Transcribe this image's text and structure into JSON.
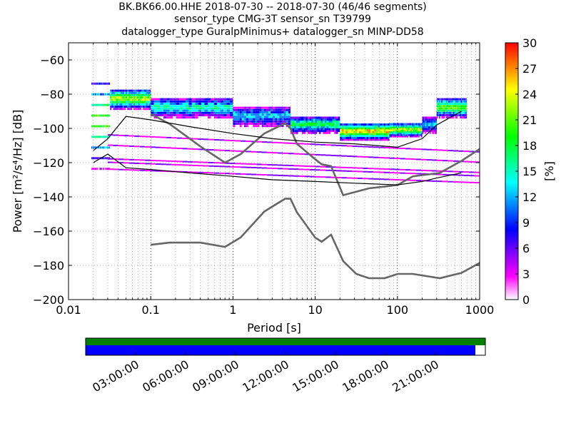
{
  "chart_data": {
    "type": "heatmap",
    "title_lines": [
      "BK.BK66.00.HHE   2018-07-30 -- 2018-07-30  (46/46 segments)",
      "sensor_type CMG-3T sensor_sn T39799",
      "datalogger_type GuralpMinimus+ datalogger_sn MINP-DD58"
    ],
    "xlabel": "Period [s]",
    "ylabel": "Power [m²/s⁴/Hz] [dB]",
    "xscale": "log",
    "xlim": [
      0.01,
      1000
    ],
    "ylim": [
      -200,
      -50
    ],
    "xticks": [
      0.01,
      0.1,
      1,
      10,
      100,
      1000
    ],
    "xtick_labels": [
      "0.01",
      "0.1",
      "1",
      "10",
      "100",
      "1000"
    ],
    "yticks": [
      -200,
      -180,
      -160,
      -140,
      -120,
      -100,
      -80,
      -60
    ],
    "ytick_labels": [
      "−200",
      "−180",
      "−160",
      "−140",
      "−120",
      "−100",
      "−80",
      "−60"
    ],
    "colorbar": {
      "label": "[%]",
      "range": [
        0,
        30
      ],
      "ticks": [
        0,
        3,
        6,
        9,
        12,
        15,
        18,
        21,
        24,
        27,
        30
      ],
      "tick_labels": [
        "0",
        "3",
        "6",
        "9",
        "12",
        "15",
        "18",
        "21",
        "24",
        "27",
        "30"
      ],
      "colormap": [
        "#ffffff",
        "#ff00ff",
        "#8000ff",
        "#0000ff",
        "#0080ff",
        "#00ffff",
        "#00ff80",
        "#00ff00",
        "#80ff00",
        "#ffff00",
        "#ff8000",
        "#ff0000"
      ]
    },
    "series": [
      {
        "role": "NHNM",
        "color": "#666666",
        "x": [
          0.1,
          0.17,
          0.4,
          0.8,
          1.24,
          2.4,
          4.3,
          5.0,
          6.0,
          10.0,
          12.0,
          15.6,
          21.9,
          31.6,
          45.0,
          70.0,
          101.0,
          154.0,
          328.0,
          600.0,
          1000.0
        ],
        "y": [
          -91.5,
          -97.4,
          -110.5,
          -120.0,
          -115.0,
          -103.0,
          -97.0,
          -100.0,
          -109.0,
          -118.0,
          -121.0,
          -122.0,
          -139.0,
          -137.0,
          -135.0,
          -134.0,
          -133.0,
          -128.0,
          -126.0,
          -119.0,
          -112.0
        ]
      },
      {
        "role": "NLNM",
        "color": "#666666",
        "x": [
          0.1,
          0.17,
          0.4,
          0.8,
          1.24,
          2.4,
          4.3,
          5.0,
          6.0,
          10.0,
          12.0,
          15.6,
          21.9,
          31.6,
          45.0,
          70.0,
          101.0,
          154.0,
          328.0,
          600.0,
          1000.0
        ],
        "y": [
          -168.0,
          -166.7,
          -166.7,
          -169.2,
          -163.7,
          -148.6,
          -141.1,
          -141.1,
          -149.0,
          -163.8,
          -166.2,
          -162.1,
          -177.5,
          -185.0,
          -187.5,
          -187.5,
          -185.0,
          -185.0,
          -187.5,
          -184.4,
          -178.6
        ]
      },
      {
        "role": "mode",
        "color": "#000000",
        "x": [
          0.02,
          0.03,
          0.05,
          0.1,
          0.3,
          1.0,
          3.0,
          10.0,
          30.0,
          100.0,
          200.0,
          300.0,
          600.0
        ],
        "y": [
          -113.0,
          -106.0,
          -93.0,
          -95.0,
          -99.0,
          -103.0,
          -106.0,
          -108.0,
          -109.0,
          -111.0,
          -106.0,
          -98.0,
          -90.0
        ]
      },
      {
        "role": "low-percentile",
        "color": "#000000",
        "x": [
          0.02,
          0.03,
          0.05,
          0.1,
          0.3,
          1.0,
          3.0,
          10.0,
          30.0,
          100.0,
          200.0,
          300.0,
          600.0
        ],
        "y": [
          -120.0,
          -115.0,
          -123.0,
          -124.0,
          -126.0,
          -128.0,
          -130.0,
          -131.0,
          -132.0,
          -133.0,
          -131.0,
          -129.0,
          -126.0
        ]
      }
    ],
    "psd_bands": [
      {
        "x": [
          0.019,
          0.032
        ],
        "y": -96.0,
        "spread": 28.0,
        "level": 8
      },
      {
        "x": [
          0.032,
          0.1
        ],
        "y": -83.0,
        "spread": 6.0,
        "level": 9
      },
      {
        "x": [
          0.1,
          1.0
        ],
        "y": -88.0,
        "spread": 6.0,
        "level": 6
      },
      {
        "x": [
          1.0,
          5.0
        ],
        "y": -93.0,
        "spread": 6.0,
        "level": 5
      },
      {
        "x": [
          5.0,
          20.0
        ],
        "y": -98.0,
        "spread": 5.0,
        "level": 7
      },
      {
        "x": [
          20.0,
          80.0
        ],
        "y": -102.0,
        "spread": 5.0,
        "level": 10
      },
      {
        "x": [
          80.0,
          200.0
        ],
        "y": -101.0,
        "spread": 4.0,
        "level": 9
      },
      {
        "x": [
          200.0,
          300.0
        ],
        "y": -98.0,
        "spread": 5.0,
        "level": 5
      },
      {
        "x": [
          300.0,
          700.0
        ],
        "y": -88.0,
        "spread": 6.0,
        "level": 8
      }
    ],
    "secondary_lines": [
      {
        "x": [
          0.03,
          1000.0
        ],
        "y": [
          -104.0,
          -114.0
        ]
      },
      {
        "x": [
          0.03,
          1000.0
        ],
        "y": [
          -110.0,
          -120.0
        ]
      },
      {
        "x": [
          0.03,
          1000.0
        ],
        "y": [
          -118.0,
          -126.0
        ]
      },
      {
        "x": [
          0.03,
          1000.0
        ],
        "y": [
          -120.0,
          -128.0
        ]
      },
      {
        "x": [
          0.03,
          1000.0
        ],
        "y": [
          -124.0,
          -132.0
        ]
      }
    ]
  },
  "timeline": {
    "tick_labels": [
      "03:00:00",
      "06:00:00",
      "09:00:00",
      "12:00:00",
      "15:00:00",
      "18:00:00",
      "21:00:00"
    ],
    "coverage_fraction": 0.975,
    "colors": {
      "available": "#008000",
      "gaps": "#0000ff"
    }
  }
}
